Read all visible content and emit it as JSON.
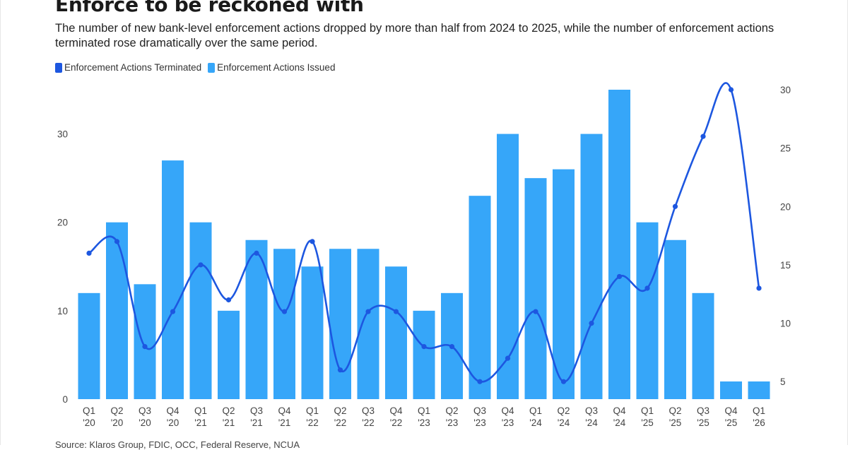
{
  "title": "Enforce to be reckoned with",
  "subtitle": "The number of new bank-level enforcement actions dropped by more than half from 2024 to 2025, while the number of enforcement actions terminated rose dramatically over the same period.",
  "legend": [
    {
      "label": "Enforcement Actions Terminated",
      "color": "#1d57e0"
    },
    {
      "label": "Enforcement Actions Issued",
      "color": "#36a6f9"
    }
  ],
  "source": "Source: Klaros Group, FDIC, OCC, Federal Reserve, NCUA",
  "chart_data": {
    "type": "bar+line",
    "title": "Enforce to be reckoned with",
    "categories": [
      [
        "Q1",
        "'20"
      ],
      [
        "Q2",
        "'20"
      ],
      [
        "Q3",
        "'20"
      ],
      [
        "Q4",
        "'20"
      ],
      [
        "Q1",
        "'21"
      ],
      [
        "Q2",
        "'21"
      ],
      [
        "Q3",
        "'21"
      ],
      [
        "Q4",
        "'21"
      ],
      [
        "Q1",
        "'22"
      ],
      [
        "Q2",
        "'22"
      ],
      [
        "Q3",
        "'22"
      ],
      [
        "Q4",
        "'22"
      ],
      [
        "Q1",
        "'23"
      ],
      [
        "Q2",
        "'23"
      ],
      [
        "Q3",
        "'23"
      ],
      [
        "Q4",
        "'23"
      ],
      [
        "Q1",
        "'24"
      ],
      [
        "Q2",
        "'24"
      ],
      [
        "Q3",
        "'24"
      ],
      [
        "Q4",
        "'24"
      ],
      [
        "Q1",
        "'25"
      ],
      [
        "Q2",
        "'25"
      ],
      [
        "Q3",
        "'25"
      ],
      [
        "Q4",
        "'25"
      ],
      [
        "Q1",
        "'26"
      ]
    ],
    "series": [
      {
        "name": "Enforcement Actions Issued",
        "type": "bar",
        "axis": "left",
        "color": "#36a6f9",
        "values": [
          12,
          20,
          13,
          27,
          20,
          10,
          18,
          17,
          15,
          17,
          17,
          15,
          10,
          12,
          23,
          30,
          25,
          26,
          30,
          35,
          20,
          18,
          12,
          2,
          2
        ]
      },
      {
        "name": "Enforcement Actions Terminated",
        "type": "line",
        "axis": "right",
        "color": "#1d57e0",
        "values": [
          16,
          17,
          8,
          11,
          15,
          12,
          16,
          11,
          17,
          6,
          11,
          11,
          8,
          8,
          5,
          7,
          11,
          5,
          10,
          14,
          13,
          20,
          26,
          30,
          13
        ]
      }
    ],
    "y_left": {
      "min": 0,
      "max": 35,
      "ticks": [
        0,
        10,
        20,
        30
      ]
    },
    "y_right": {
      "min": 3.5,
      "max": 30,
      "ticks": [
        5,
        10,
        15,
        20,
        25,
        30
      ]
    },
    "legend_position": "top-left",
    "grid": false
  }
}
